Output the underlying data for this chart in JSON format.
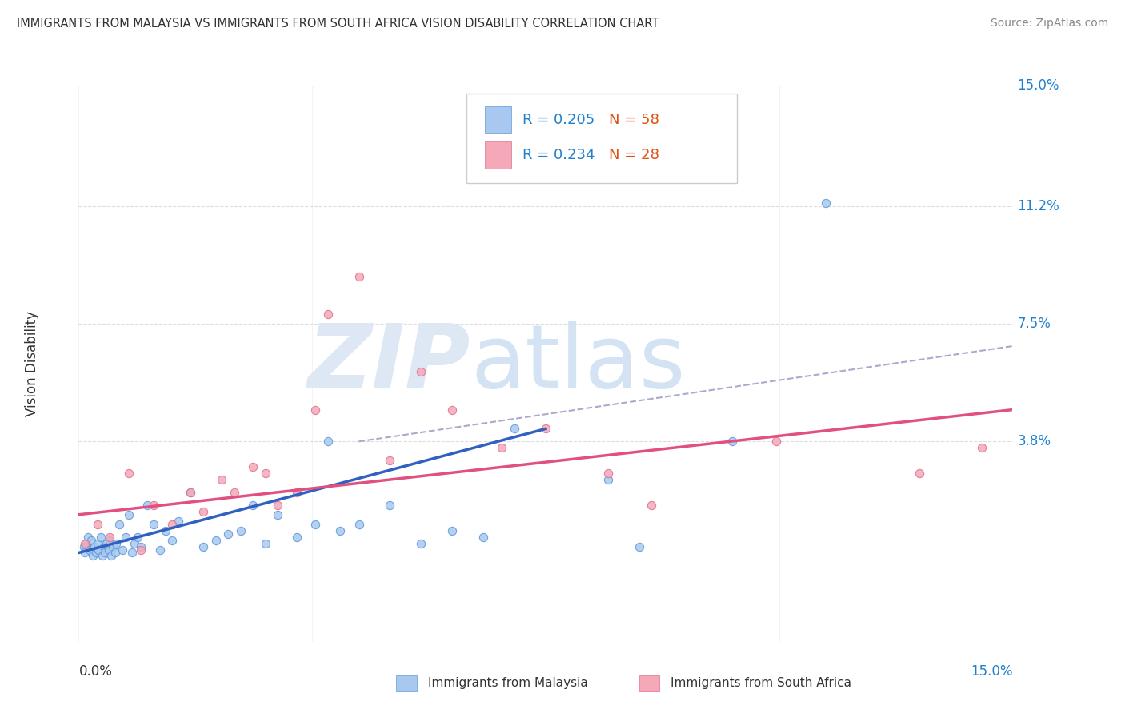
{
  "title": "IMMIGRANTS FROM MALAYSIA VS IMMIGRANTS FROM SOUTH AFRICA VISION DISABILITY CORRELATION CHART",
  "source": "Source: ZipAtlas.com",
  "ylabel": "Vision Disability",
  "ytick_labels": [
    "15.0%",
    "11.2%",
    "7.5%",
    "3.8%"
  ],
  "ytick_values": [
    15.0,
    11.2,
    7.5,
    3.8
  ],
  "xlim": [
    0.0,
    15.0
  ],
  "ylim": [
    -2.5,
    15.0
  ],
  "legend_r1": "R = 0.205",
  "legend_n1": "N = 58",
  "legend_r2": "R = 0.234",
  "legend_n2": "N = 28",
  "color_malaysia_fill": "#a8c8f0",
  "color_malaysia_edge": "#5b9bd5",
  "color_sa_fill": "#f4a8b8",
  "color_sa_edge": "#e07090",
  "color_line_malaysia": "#3060c0",
  "color_line_sa": "#e05080",
  "color_dashed": "#aaaacc",
  "color_grid": "#dddddd",
  "color_title": "#333333",
  "color_source": "#888888",
  "color_blue_label": "#2080d0",
  "color_n_label": "#e05010",
  "background_color": "#ffffff",
  "malaysia_x": [
    0.08,
    0.1,
    0.12,
    0.15,
    0.18,
    0.2,
    0.22,
    0.25,
    0.28,
    0.3,
    0.32,
    0.35,
    0.38,
    0.4,
    0.42,
    0.45,
    0.48,
    0.5,
    0.52,
    0.55,
    0.58,
    0.6,
    0.65,
    0.7,
    0.75,
    0.8,
    0.85,
    0.9,
    0.95,
    1.0,
    1.1,
    1.2,
    1.3,
    1.4,
    1.5,
    1.6,
    1.8,
    2.0,
    2.2,
    2.4,
    2.6,
    2.8,
    3.0,
    3.2,
    3.5,
    3.8,
    4.0,
    4.2,
    4.5,
    5.0,
    5.5,
    6.0,
    6.5,
    7.0,
    8.5,
    9.0,
    10.5,
    12.0
  ],
  "malaysia_y": [
    0.5,
    0.3,
    0.6,
    0.8,
    0.4,
    0.7,
    0.2,
    0.5,
    0.3,
    0.6,
    0.4,
    0.8,
    0.2,
    0.5,
    0.3,
    0.6,
    0.4,
    0.7,
    0.2,
    0.5,
    0.3,
    0.6,
    1.2,
    0.4,
    0.8,
    1.5,
    0.3,
    0.6,
    0.8,
    0.5,
    1.8,
    1.2,
    0.4,
    1.0,
    0.7,
    1.3,
    2.2,
    0.5,
    0.7,
    0.9,
    1.0,
    1.8,
    0.6,
    1.5,
    0.8,
    1.2,
    3.8,
    1.0,
    1.2,
    1.8,
    0.6,
    1.0,
    0.8,
    4.2,
    2.6,
    0.5,
    3.8,
    11.3
  ],
  "sa_x": [
    0.1,
    0.3,
    0.5,
    0.8,
    1.0,
    1.2,
    1.5,
    1.8,
    2.0,
    2.3,
    2.5,
    2.8,
    3.0,
    3.2,
    3.5,
    3.8,
    4.0,
    4.5,
    5.0,
    5.5,
    6.0,
    6.8,
    7.5,
    8.5,
    9.2,
    11.2,
    13.5,
    14.5
  ],
  "sa_y": [
    0.6,
    1.2,
    0.8,
    2.8,
    0.4,
    1.8,
    1.2,
    2.2,
    1.6,
    2.6,
    2.2,
    3.0,
    2.8,
    1.8,
    2.2,
    4.8,
    7.8,
    9.0,
    3.2,
    6.0,
    4.8,
    3.6,
    4.2,
    2.8,
    1.8,
    3.8,
    2.8,
    3.6
  ],
  "mal_line_x0": 0.0,
  "mal_line_y0": 0.3,
  "mal_line_x1": 7.5,
  "mal_line_y1": 4.2,
  "sa_line_x0": 0.0,
  "sa_line_y0": 1.5,
  "sa_line_x1": 15.0,
  "sa_line_y1": 4.8,
  "dash_line_x0": 4.5,
  "dash_line_y0": 3.8,
  "dash_line_x1": 15.0,
  "dash_line_y1": 6.8
}
